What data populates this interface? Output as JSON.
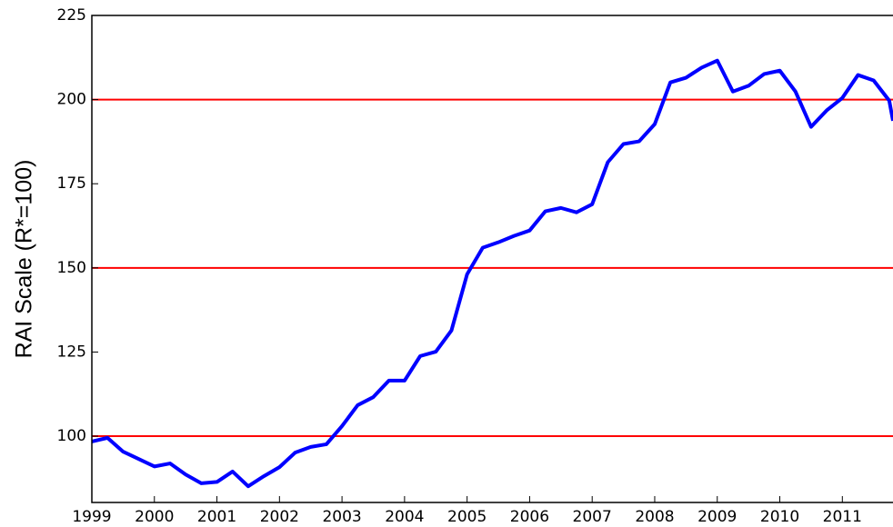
{
  "chart_data": {
    "type": "line",
    "y_label": "RAI Scale (R*=100)",
    "x": [
      1999.0,
      1999.25,
      1999.5,
      1999.75,
      2000.0,
      2000.25,
      2000.5,
      2000.75,
      2001.0,
      2001.25,
      2001.5,
      2001.75,
      2002.0,
      2002.25,
      2002.5,
      2002.75,
      2003.0,
      2003.25,
      2003.5,
      2003.75,
      2004.0,
      2004.25,
      2004.5,
      2004.75,
      2005.0,
      2005.25,
      2005.5,
      2005.75,
      2006.0,
      2006.25,
      2006.5,
      2006.75,
      2007.0,
      2007.25,
      2007.5,
      2007.75,
      2008.0,
      2008.25,
      2008.5,
      2008.75,
      2009.0,
      2009.25,
      2009.5,
      2009.75,
      2010.0,
      2010.25,
      2010.5,
      2010.75,
      2011.0,
      2011.25,
      2011.5,
      2011.75,
      2011.81
    ],
    "series": [
      {
        "color": "#0000ff",
        "values": [
          98.4,
          99.5,
          95.4,
          93.2,
          91,
          91.9,
          88.6,
          86,
          86.4,
          89.5,
          85.1,
          88.1,
          90.8,
          95.1,
          96.8,
          97.6,
          103,
          109.2,
          111.6,
          116.5,
          116.5,
          123.8,
          125.1,
          131.4,
          148.1,
          156,
          157.6,
          159.5,
          161.1,
          166.8,
          167.8,
          166.5,
          168.9,
          181.4,
          186.8,
          187.6,
          192.7,
          205.1,
          206.5,
          209.5,
          211.6,
          202.4,
          204.1,
          207.6,
          208.6,
          202.4,
          191.9,
          196.8,
          200.5,
          207.3,
          205.7,
          199.7,
          193.7
        ]
      }
    ],
    "xlim": [
      1999,
      2011.81
    ],
    "xticks": [
      1999,
      2000,
      2001,
      2002,
      2003,
      2004,
      2005,
      2006,
      2007,
      2008,
      2009,
      2010,
      2011
    ],
    "ylim": [
      80.3,
      225
    ],
    "yticks": [
      100,
      125,
      150,
      175,
      200,
      225
    ],
    "hlines": [
      100,
      150,
      200
    ],
    "hline_color": "#ff0000"
  }
}
